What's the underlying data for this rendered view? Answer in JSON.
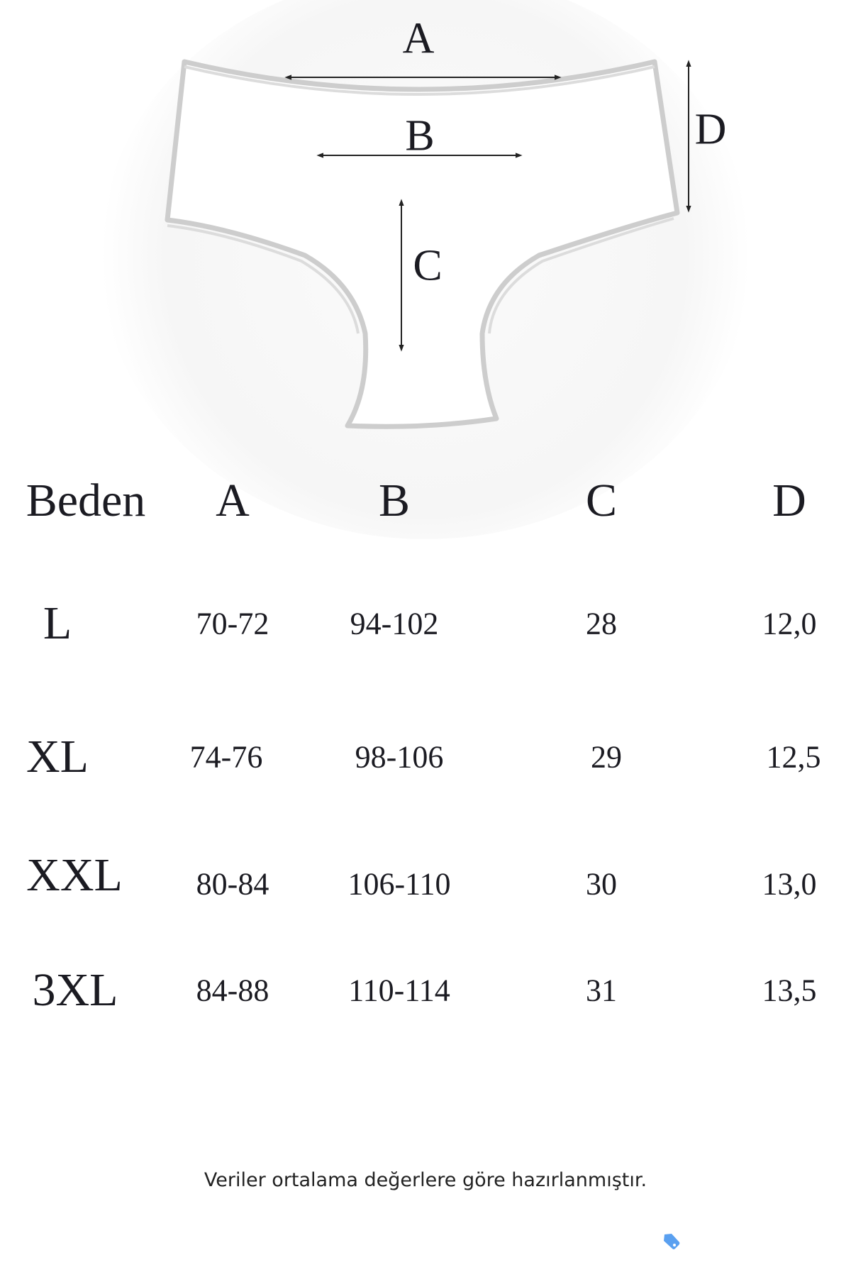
{
  "diagram": {
    "labels": {
      "a": "A",
      "b": "B",
      "c": "C",
      "d": "D"
    }
  },
  "table": {
    "headers": [
      "Beden",
      "A",
      "B",
      "C",
      "D"
    ],
    "rows": [
      [
        "L",
        "70-72",
        "94-102",
        "28",
        "12,0"
      ],
      [
        "XL",
        "74-76",
        "98-106",
        "29",
        "12,5"
      ],
      [
        "XXL",
        "80-84",
        "106-110",
        "30",
        "13,0"
      ],
      [
        "3XL",
        "84-88",
        "110-114",
        "31",
        "13,5"
      ]
    ]
  },
  "note": "Veriler ortalama değerlere göre hazırlanmıştır.",
  "icons": {
    "tag": "tag-icon"
  },
  "colors": {
    "text": "#1b1b22",
    "outline": "#cfcfcf",
    "tag": "#5aa0f0"
  }
}
